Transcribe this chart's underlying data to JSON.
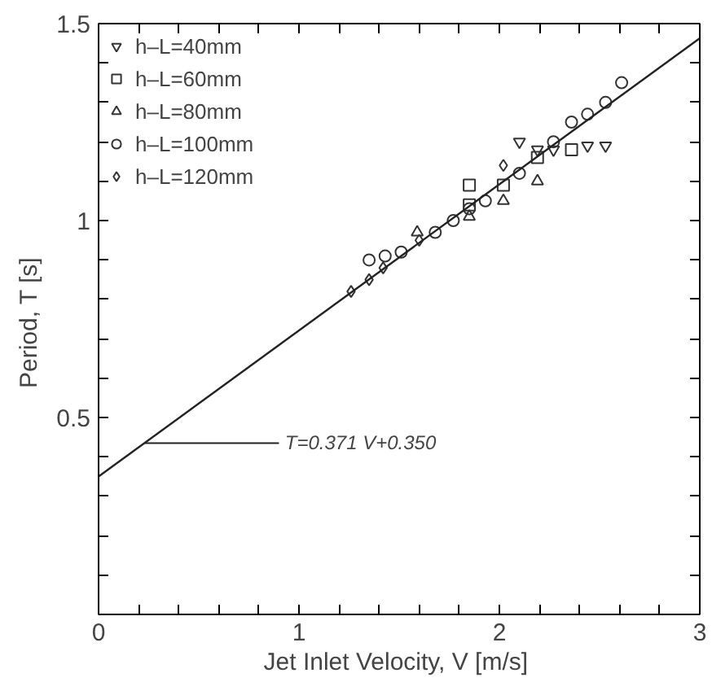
{
  "chart_data": {
    "type": "scatter",
    "xlabel": "Jet Inlet Velocity,  V [m/s]",
    "ylabel": "Period,  T [s]",
    "xlim": [
      0,
      3
    ],
    "ylim": [
      0,
      1.5
    ],
    "xticks": [
      0,
      {
        "value": 0.2,
        "label": null
      },
      {
        "value": 0.4,
        "label": null
      },
      {
        "value": 0.6,
        "label": null
      },
      {
        "value": 0.8,
        "label": null
      },
      1,
      {
        "value": 1.2,
        "label": null
      },
      {
        "value": 1.4,
        "label": null
      },
      {
        "value": 1.6,
        "label": null
      },
      {
        "value": 1.8,
        "label": null
      },
      2,
      {
        "value": 2.2,
        "label": null
      },
      {
        "value": 2.4,
        "label": null
      },
      {
        "value": 2.6,
        "label": null
      },
      {
        "value": 2.8,
        "label": null
      },
      3
    ],
    "yticks": [
      {
        "value": 0.1,
        "label": null
      },
      {
        "value": 0.2,
        "label": null
      },
      {
        "value": 0.3,
        "label": null
      },
      {
        "value": 0.4,
        "label": null
      },
      0.5,
      {
        "value": 0.6,
        "label": null
      },
      {
        "value": 0.7,
        "label": null
      },
      {
        "value": 0.8,
        "label": null
      },
      {
        "value": 0.9,
        "label": null
      },
      1,
      {
        "value": 1.1,
        "label": null
      },
      {
        "value": 1.2,
        "label": null
      },
      {
        "value": 1.3,
        "label": null
      },
      {
        "value": 1.4,
        "label": null
      },
      1.5
    ],
    "grid": false,
    "legend": "top left",
    "series": [
      {
        "name": "h–L=40mm",
        "color": "#333333",
        "x": [
          2.1,
          2.19,
          2.27,
          2.44,
          2.53
        ],
        "values": [
          1.2,
          1.18,
          1.18,
          1.19,
          1.19
        ]
      },
      {
        "name": "h–L=60mm",
        "marker": "square",
        "color": "#333333",
        "x": [
          1.85,
          1.85,
          2.02,
          2.19,
          2.36
        ],
        "values": [
          1.09,
          1.04,
          1.09,
          1.16,
          1.18
        ]
      },
      {
        "name": "h–L=80mm",
        "marker": "triangle",
        "color": "#333333",
        "x": [
          1.59,
          1.85,
          2.02,
          2.19
        ],
        "values": [
          0.97,
          1.01,
          1.05,
          1.1
        ]
      },
      {
        "name": "h–L=100mm",
        "marker": "circle",
        "color": "#333333",
        "x": [
          1.35,
          1.43,
          1.51,
          1.68,
          1.77,
          1.85,
          1.93,
          2.1,
          2.27,
          2.36,
          2.44,
          2.53,
          2.61
        ],
        "values": [
          0.9,
          0.91,
          0.92,
          0.97,
          1.0,
          1.03,
          1.05,
          1.12,
          1.2,
          1.25,
          1.27,
          1.3,
          1.35
        ]
      },
      {
        "name": "h–L=120mm",
        "marker": "diamond",
        "color": "#333333",
        "x": [
          1.26,
          1.35,
          1.42,
          1.6,
          2.02
        ],
        "values": [
          0.82,
          0.85,
          0.88,
          0.95,
          1.14
        ]
      },
      {
        "type": "line",
        "marker": "none",
        "color": "#222222",
        "x": [
          0,
          3
        ],
        "values": [
          0.35,
          1.463
        ]
      }
    ],
    "annotations": [
      {
        "text": "T=0.371 V+0.350",
        "x": 0.23,
        "y": 0.435
      }
    ]
  }
}
